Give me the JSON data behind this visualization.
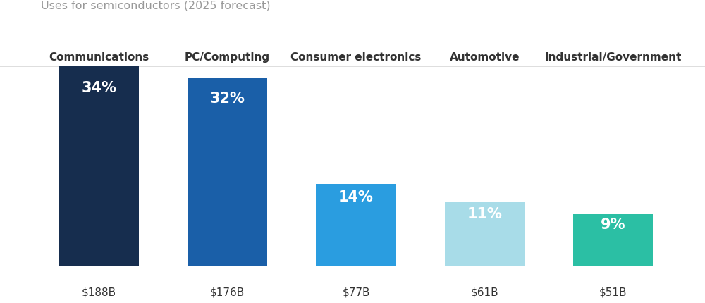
{
  "title": "Uses for semiconductors (2025 forecast)",
  "categories": [
    "Communications",
    "PC/Computing",
    "Consumer electronics",
    "Automotive",
    "Industrial/Government"
  ],
  "values": [
    34,
    32,
    14,
    11,
    9
  ],
  "dollar_labels": [
    "$188B",
    "$176B",
    "$77B",
    "$61B",
    "$51B"
  ],
  "pct_labels": [
    "34%",
    "32%",
    "14%",
    "11%",
    "9%"
  ],
  "bar_colors": [
    "#162d4e",
    "#1a5fa8",
    "#2a9de0",
    "#a8dce8",
    "#2bbfa4"
  ],
  "background_color": "#ffffff",
  "title_color": "#999999",
  "category_color": "#333333",
  "dollar_color": "#333333",
  "pct_text_color": "#ffffff",
  "title_fontsize": 11.5,
  "category_fontsize": 11,
  "pct_fontsize": 15,
  "dollar_fontsize": 11,
  "bar_width": 0.62,
  "ylim": [
    0,
    34
  ],
  "figsize": [
    10.0,
    4.31
  ]
}
